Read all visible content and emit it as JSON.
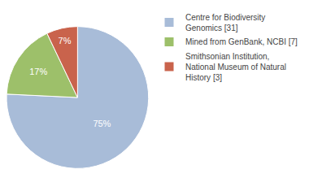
{
  "chart_data": {
    "type": "pie",
    "categories": [
      "Centre for Biodiversity\nGenomics [31]",
      "Mined from GenBank, NCBI [7]",
      "Smithsonian Institution,\nNational Museum of Natural\nHistory [3]"
    ],
    "values": [
      75,
      17,
      7
    ],
    "value_labels": [
      "75%",
      "17%",
      "7%"
    ],
    "colors": [
      "#a8bcd8",
      "#9dc06a",
      "#c9634c"
    ],
    "data_labels": true,
    "legend": "upper right"
  }
}
